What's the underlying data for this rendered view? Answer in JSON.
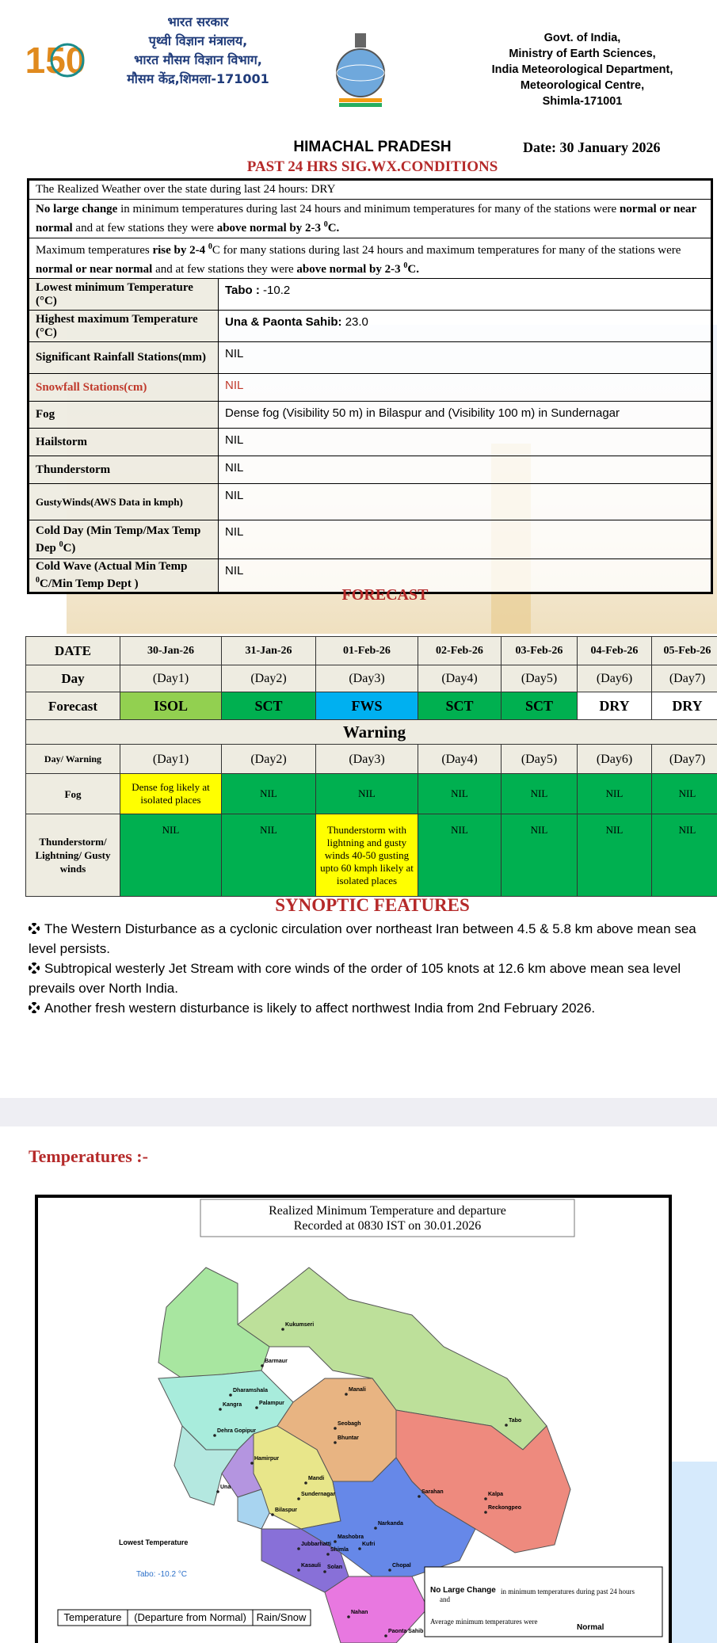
{
  "header": {
    "logo": "150",
    "hindi": [
      "भारत सरकार",
      "पृथ्वी विज्ञान मंत्रालय,",
      "भारत मौसम विज्ञान विभाग,",
      "मौसम केंद्र,शिमला-171001"
    ],
    "english": [
      "Govt. of India,",
      "Ministry of Earth Sciences,",
      "India Meteorological Department,",
      "Meteorological Centre,",
      "Shimla-171001"
    ]
  },
  "title": "HIMACHAL PRADESH",
  "date": "Date: 30 January 2026",
  "past_title": "PAST 24 HRS SIG.WX.CONDITIONS",
  "realized": {
    "intro": "The Realized Weather over the state during last 24 hours: DRY",
    "min_para": [
      "No large change",
      " in minimum temperatures during last 24 hours and minimum temperatures for many of the stations were ",
      "normal or near normal",
      " and at few stations they were ",
      "above normal by 2-3 ",
      "0",
      "C."
    ],
    "max_para": [
      "Maximum temperatures ",
      "rise by 2-4 ",
      "0",
      "C",
      " for many stations during last 24 hours and maximum temperatures for many of the stations were ",
      "normal or near normal",
      " and at few stations they were ",
      "above normal by 2-3 ",
      "0",
      "C."
    ],
    "rows": [
      {
        "label": [
          "Lowest minimum Temperature (°C)"
        ],
        "value": [
          "Tabo : ",
          "-10.2"
        ]
      },
      {
        "label": [
          "Highest maximum Temperature (°C)"
        ],
        "value": [
          "Una  & Paonta Sahib: ",
          "23.0"
        ]
      },
      {
        "label": [
          "Significant Rainfall Stations(mm)"
        ],
        "value": [
          "NIL"
        ]
      },
      {
        "label": [
          "Snowfall Stations(cm)"
        ],
        "value": [
          "NIL"
        ],
        "color": "#c0392b"
      },
      {
        "label": [
          "Fog"
        ],
        "value": [
          "Dense fog (Visibility 50 m) in Bilaspur and (Visibility 100 m) in Sundernagar"
        ]
      },
      {
        "label": [
          "Hailstorm"
        ],
        "value": [
          "NIL"
        ]
      },
      {
        "label": [
          "Thunderstorm"
        ],
        "value": [
          "NIL"
        ]
      },
      {
        "label": [
          "GustyWinds(AWS Data in kmph)"
        ],
        "value": [
          "NIL"
        ]
      },
      {
        "label": [
          "Cold Day (Min Temp/Max Temp Dep ",
          "0",
          "C)"
        ],
        "value": [
          "NIL"
        ]
      },
      {
        "label": [
          "Cold Wave (Actual Min Temp ",
          "0",
          "C/Min Temp Dept )"
        ],
        "value": [
          "NIL"
        ]
      }
    ]
  },
  "forecast": {
    "title": "FORECAST",
    "dates": [
      "DATE",
      "30-Jan-26",
      "31-Jan-26",
      "01-Feb-26",
      "02-Feb-26",
      "03-Feb-26",
      "04-Feb-26",
      "05-Feb-26"
    ],
    "days": [
      "Day",
      "(Day1)",
      "(Day2)",
      "(Day3)",
      "(Day4)",
      "(Day5)",
      "(Day6)",
      "(Day7)"
    ],
    "forecast": [
      "Forecast",
      "ISOL",
      "SCT",
      "FWS",
      "SCT",
      "SCT",
      "DRY",
      "DRY"
    ],
    "forecast_colors": [
      "#92d050",
      "#00b050",
      "#00b0f0",
      "#00b050",
      "#00b050",
      "#ffffff",
      "#ffffff"
    ],
    "warning_title": "Warning",
    "warning_days": [
      "Day/ Warning",
      "(Day1)",
      "(Day2)",
      "(Day3)",
      "(Day4)",
      "(Day5)",
      "(Day6)",
      "(Day7)"
    ],
    "warnings": [
      {
        "label": "Fog",
        "cells": [
          "Dense fog likely at isolated places",
          "NIL",
          "NIL",
          "NIL",
          "NIL",
          "NIL",
          "NIL"
        ],
        "colors": [
          "#ffff00",
          "#00b050",
          "#00b050",
          "#00b050",
          "#00b050",
          "#00b050",
          "#00b050"
        ]
      },
      {
        "label": "Thunderstorm/ Lightning/ Gusty winds",
        "cells": [
          "NIL",
          "NIL",
          "Thunderstorm with lightning and gusty winds 40-50 gusting upto 60 kmph likely at isolated places",
          "NIL",
          "NIL",
          "NIL",
          "NIL"
        ],
        "colors": [
          "#00b050",
          "#00b050",
          "#ffff00",
          "#00b050",
          "#00b050",
          "#00b050",
          "#00b050"
        ]
      }
    ]
  },
  "synoptic": {
    "title": "SYNOPTIC FEATURES",
    "bullets": [
      "The Western Disturbance as a cyclonic circulation over northeast Iran between 4.5 & 5.8 km above mean sea level persists.",
      "Subtropical westerly Jet Stream with core winds of the order of 105 knots at 12.6 km above mean sea level prevails over North India.",
      "Another fresh western disturbance is likely to affect northwest India from 2nd February 2026."
    ]
  },
  "temperatures": {
    "heading": "Temperatures :-",
    "map": {
      "title_lines": [
        "Realized Minimum Temperature and departure",
        "Recorded at 0830 IST on 30.01.2026"
      ],
      "stations": [
        "Kukumseri",
        "Barmaur",
        "Manali",
        "Dharamshala",
        "Kangra",
        "Palampur",
        "Seobagh",
        "Bhuntar",
        "Dehra Gopipur",
        "Hamirpur",
        "Tabo",
        "Una",
        "Mandi",
        "Sundernagar",
        "Bilaspur",
        "Sarahan",
        "Kalpa",
        "Reckongpeo",
        "Narkanda",
        "Mashobra",
        "Jubbarhatti",
        "Shimla",
        "Kufri",
        "Kasauli",
        "Solan",
        "Chopal",
        "Nahan",
        "Paonta Sahib"
      ],
      "lowest_label": "Lowest Temperature",
      "lowest_value": "Tabo: -10.2 °C",
      "legend": [
        "Temperature",
        "(Departure from Normal)",
        "Rain/Snow"
      ],
      "note": {
        "bold": "No Large Change",
        "and": "and",
        "text": "in minimum temperatures during past 24 hours",
        "avg": "Average minimum temperatures were",
        "avg_value": "Normal"
      }
    }
  }
}
